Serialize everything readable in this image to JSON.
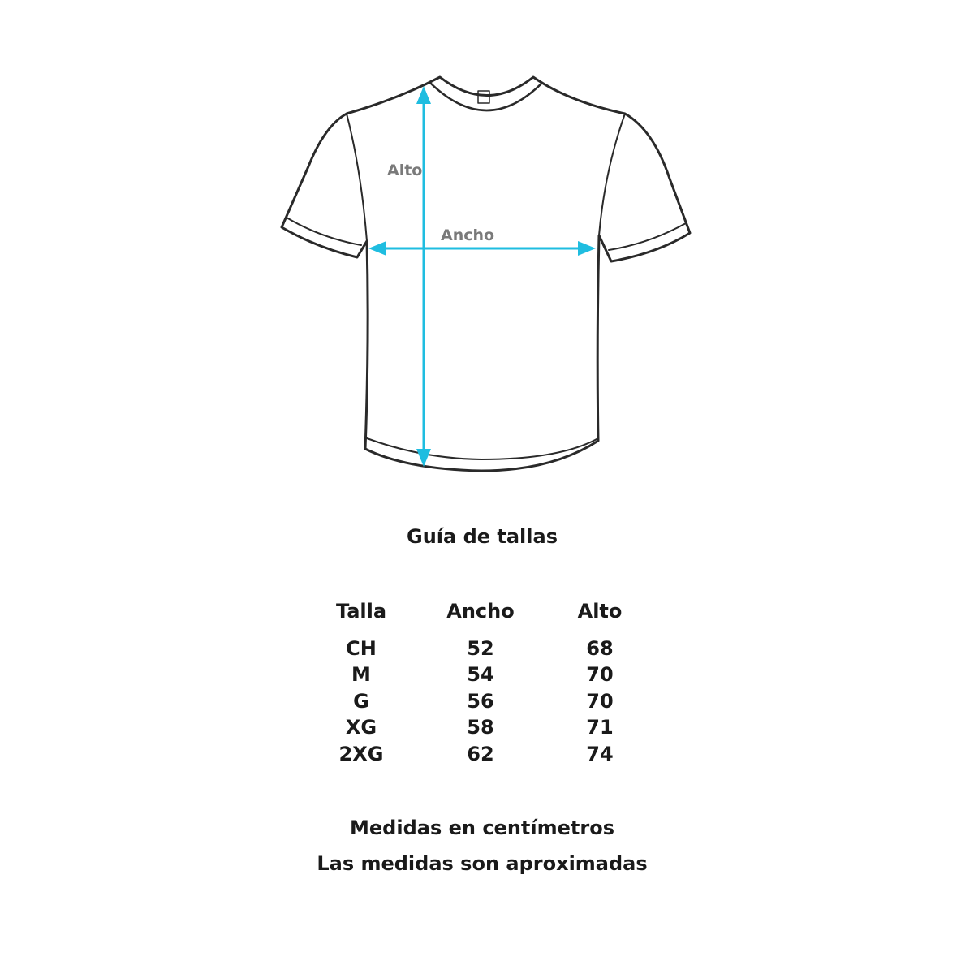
{
  "diagram": {
    "labels": {
      "height": "Alto",
      "width": "Ancho"
    },
    "colors": {
      "arrow": "#1fbde0",
      "outline": "#2a2a2a",
      "label": "#7a7a7a"
    }
  },
  "title": "Guía de tallas",
  "table": {
    "headers": [
      "Talla",
      "Ancho",
      "Alto"
    ],
    "rows": [
      [
        "CH",
        "52",
        "68"
      ],
      [
        "M",
        "54",
        "70"
      ],
      [
        "G",
        "56",
        "70"
      ],
      [
        "XG",
        "58",
        "71"
      ],
      [
        "2XG",
        "62",
        "74"
      ]
    ]
  },
  "notes": [
    "Medidas en centímetros",
    "Las medidas son aproximadas"
  ]
}
